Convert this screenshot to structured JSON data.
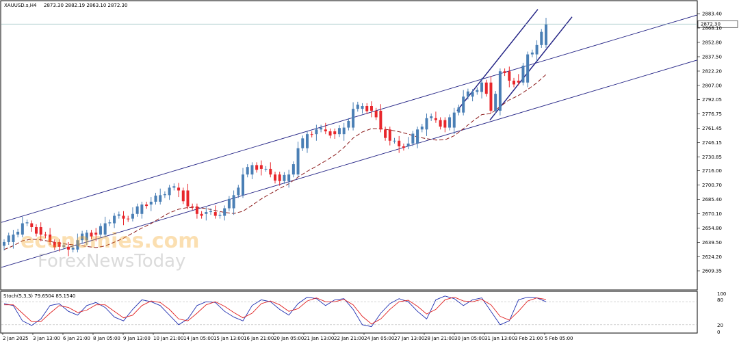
{
  "header": {
    "symbol": "XAUUSD.s,H4",
    "ohlc": "2873.30 2882.19 2863.10 2872.30"
  },
  "stoch": {
    "label": "Stoch(5,3,3) 79.6504 85.1540",
    "levels": [
      "100",
      "80",
      "20",
      "0"
    ]
  },
  "watermark": {
    "line1": "economies.com",
    "line2": "ForexNewsToday"
  },
  "colors": {
    "bull": "#4a7fb5",
    "bear": "#e8262b",
    "channel": "#232385",
    "ma": "#8b1a1a",
    "stoch_main": "#1f2fb0",
    "stoch_signal": "#e02020"
  },
  "chart_data": {
    "type": "candlestick",
    "price_labels": [
      "2883.40",
      "2868.10",
      "2852.80",
      "2837.50",
      "2822.20",
      "2807.00",
      "2792.05",
      "2776.75",
      "2761.45",
      "2746.15",
      "2730.85",
      "2716.00",
      "2700.70",
      "2685.40",
      "2670.10",
      "2654.80",
      "2639.50",
      "2624.20",
      "2609.35"
    ],
    "current_price": "2872.30",
    "ylim": [
      2609.35,
      2883.4
    ],
    "time_labels": [
      "2 Jan 2025",
      "3 Jan 13:00",
      "6 Jan 21:00",
      "8 Jan 05:00",
      "9 Jan 13:00",
      "10 Jan 21:00",
      "14 Jan 05:00",
      "15 Jan 13:00",
      "16 Jan 21:00",
      "20 Jan 05:00",
      "21 Jan 13:00",
      "22 Jan 21:00",
      "24 Jan 05:00",
      "27 Jan 13:00",
      "28 Jan 21:00",
      "30 Jan 05:00",
      "31 Jan 13:00",
      "3 Feb 21:00",
      "5 Feb 05:00"
    ],
    "close_path": [
      2640,
      2648,
      2660,
      2656,
      2648,
      2640,
      2635,
      2632,
      2642,
      2650,
      2648,
      2660,
      2668,
      2665,
      2670,
      2680,
      2683,
      2690,
      2698,
      2695,
      2678,
      2670,
      2672,
      2668,
      2676,
      2690,
      2712,
      2722,
      2718,
      2712,
      2705,
      2712,
      2740,
      2755,
      2760,
      2758,
      2755,
      2762,
      2782,
      2785,
      2780,
      2760,
      2748,
      2742,
      2745,
      2760,
      2772,
      2770,
      2762,
      2778,
      2795,
      2800,
      2810,
      2780,
      2822,
      2812,
      2810,
      2840,
      2850,
      2872
    ],
    "stoch_main": [
      75,
      70,
      30,
      18,
      35,
      70,
      75,
      55,
      45,
      70,
      78,
      65,
      40,
      30,
      60,
      85,
      80,
      70,
      45,
      20,
      35,
      70,
      80,
      78,
      55,
      40,
      30,
      70,
      85,
      80,
      60,
      45,
      75,
      92,
      88,
      70,
      85,
      88,
      60,
      20,
      15,
      50,
      75,
      88,
      80,
      55,
      35,
      85,
      95,
      88,
      70,
      85,
      90,
      55,
      20,
      30,
      85,
      92,
      90,
      80
    ],
    "stoch_signal": [
      72,
      72,
      50,
      28,
      28,
      50,
      70,
      65,
      52,
      58,
      72,
      72,
      55,
      38,
      45,
      70,
      82,
      78,
      60,
      35,
      30,
      50,
      72,
      80,
      68,
      52,
      38,
      50,
      75,
      82,
      72,
      55,
      62,
      82,
      90,
      80,
      80,
      86,
      72,
      42,
      22,
      35,
      60,
      80,
      84,
      68,
      48,
      60,
      85,
      92,
      82,
      80,
      86,
      72,
      42,
      32,
      55,
      82,
      90,
      86
    ]
  }
}
